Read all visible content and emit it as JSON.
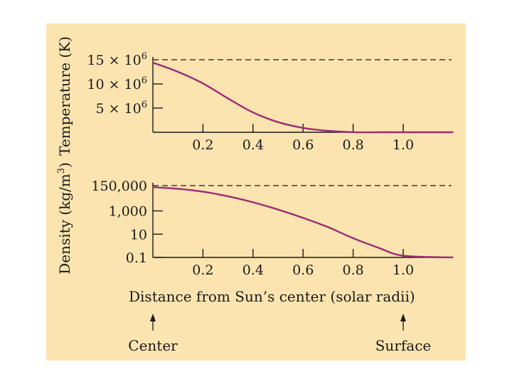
{
  "colors": {
    "background": "#fbe4b0",
    "curve": "#9b2a77",
    "ink": "#1a1a1a"
  },
  "chart_data": [
    {
      "type": "line",
      "ylabel": "Temperature (K)",
      "xlim": [
        0,
        1.2
      ],
      "ylim": [
        0,
        15000000
      ],
      "x_ticks": [
        "0.2",
        "0.4",
        "0.6",
        "0.8",
        "1.0"
      ],
      "x_tick_values": [
        0.2,
        0.4,
        0.6,
        0.8,
        1.0
      ],
      "y_ticks": [
        {
          "value": 15000000,
          "coef": "15 × 10",
          "exp": "6",
          "dashed": true
        },
        {
          "value": 10000000,
          "coef": "10 × 10",
          "exp": "6",
          "dashed": false
        },
        {
          "value": 5000000,
          "coef": "5 × 10",
          "exp": "6",
          "dashed": false
        }
      ],
      "series": [
        {
          "name": "temperature",
          "x": [
            0,
            0.1,
            0.2,
            0.3,
            0.4,
            0.5,
            0.6,
            0.7,
            0.8,
            0.9,
            1.0,
            1.2
          ],
          "y": [
            14400000,
            12500000,
            10100000,
            7000000,
            4100000,
            2100000,
            900000,
            300000,
            20000,
            0,
            0,
            0
          ]
        }
      ]
    },
    {
      "type": "line",
      "ylabel": "Density (kg/m",
      "ylabel_sup": "3",
      "ylabel_end": ")",
      "scale": "log",
      "xlim": [
        0,
        1.2
      ],
      "ylim": [
        0.1,
        150000
      ],
      "x_ticks": [
        "0.2",
        "0.4",
        "0.6",
        "0.8",
        "1.0"
      ],
      "x_tick_values": [
        0.2,
        0.4,
        0.6,
        0.8,
        1.0
      ],
      "y_ticks": [
        {
          "value": 150000,
          "label": "150,000",
          "dashed": true
        },
        {
          "value": 1000,
          "label": "1,000",
          "dashed": false
        },
        {
          "value": 10,
          "label": "10",
          "dashed": false
        },
        {
          "value": 0.1,
          "label": "0.1",
          "dashed": false
        }
      ],
      "series": [
        {
          "name": "density",
          "x": [
            0,
            0.1,
            0.2,
            0.3,
            0.4,
            0.5,
            0.6,
            0.7,
            0.8,
            0.9,
            1.0,
            1.2
          ],
          "y": [
            110000,
            80000,
            45000,
            18000,
            5500,
            1300,
            250,
            40,
            4.5,
            0.7,
            0.14,
            0.1
          ]
        }
      ]
    }
  ],
  "xlabel": "Distance from Sun’s center (solar radii)",
  "markers": [
    {
      "label": "Center",
      "x_value": 0
    },
    {
      "label": "Surface",
      "x_value": 1.0
    }
  ]
}
